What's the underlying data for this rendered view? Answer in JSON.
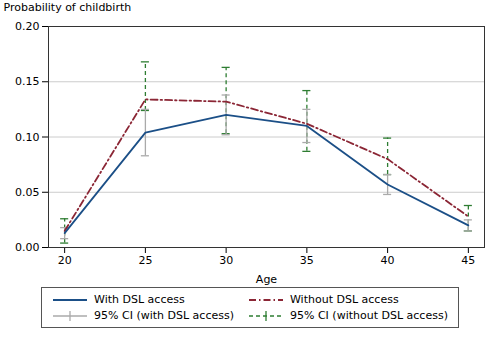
{
  "chart_data": {
    "type": "line",
    "xlabel": "Age",
    "ylabel": "Probability of childbirth",
    "x": [
      20,
      25,
      30,
      35,
      40,
      45
    ],
    "xlim": [
      19,
      46
    ],
    "xticks": [
      20,
      25,
      30,
      35,
      40,
      45
    ],
    "ylim": [
      0.0,
      0.2
    ],
    "yticks": [
      {
        "value": 0.0,
        "label": "0.00"
      },
      {
        "value": 0.05,
        "label": "0.05"
      },
      {
        "value": 0.1,
        "label": "0.10"
      },
      {
        "value": 0.15,
        "label": "0.15"
      },
      {
        "value": 0.2,
        "label": "0.20"
      }
    ],
    "grid": "y",
    "legend": "bottom",
    "series": [
      {
        "name": "With DSL access",
        "type": "line",
        "color": "#1b4f87",
        "line_style": "solid",
        "values": [
          0.013,
          0.104,
          0.12,
          0.11,
          0.057,
          0.02
        ]
      },
      {
        "name": "Without DSL access",
        "type": "line",
        "color": "#8b2635",
        "line_style": "dashdot",
        "values": [
          0.015,
          0.134,
          0.132,
          0.112,
          0.08,
          0.028
        ]
      },
      {
        "name": "95% CI (with DSL access)",
        "type": "errorbar",
        "color": "#aaaaaa",
        "line_style": "solid",
        "low": [
          0.008,
          0.083,
          0.102,
          0.095,
          0.048,
          0.015
        ],
        "high": [
          0.018,
          0.125,
          0.138,
          0.125,
          0.066,
          0.025
        ]
      },
      {
        "name": "95% CI (without DSL access)",
        "type": "errorbar",
        "color": "#2e7d32",
        "line_style": "dashed",
        "low": [
          0.004,
          0.124,
          0.103,
          0.087,
          0.066,
          0.015
        ],
        "high": [
          0.026,
          0.168,
          0.163,
          0.142,
          0.099,
          0.038
        ]
      }
    ]
  }
}
